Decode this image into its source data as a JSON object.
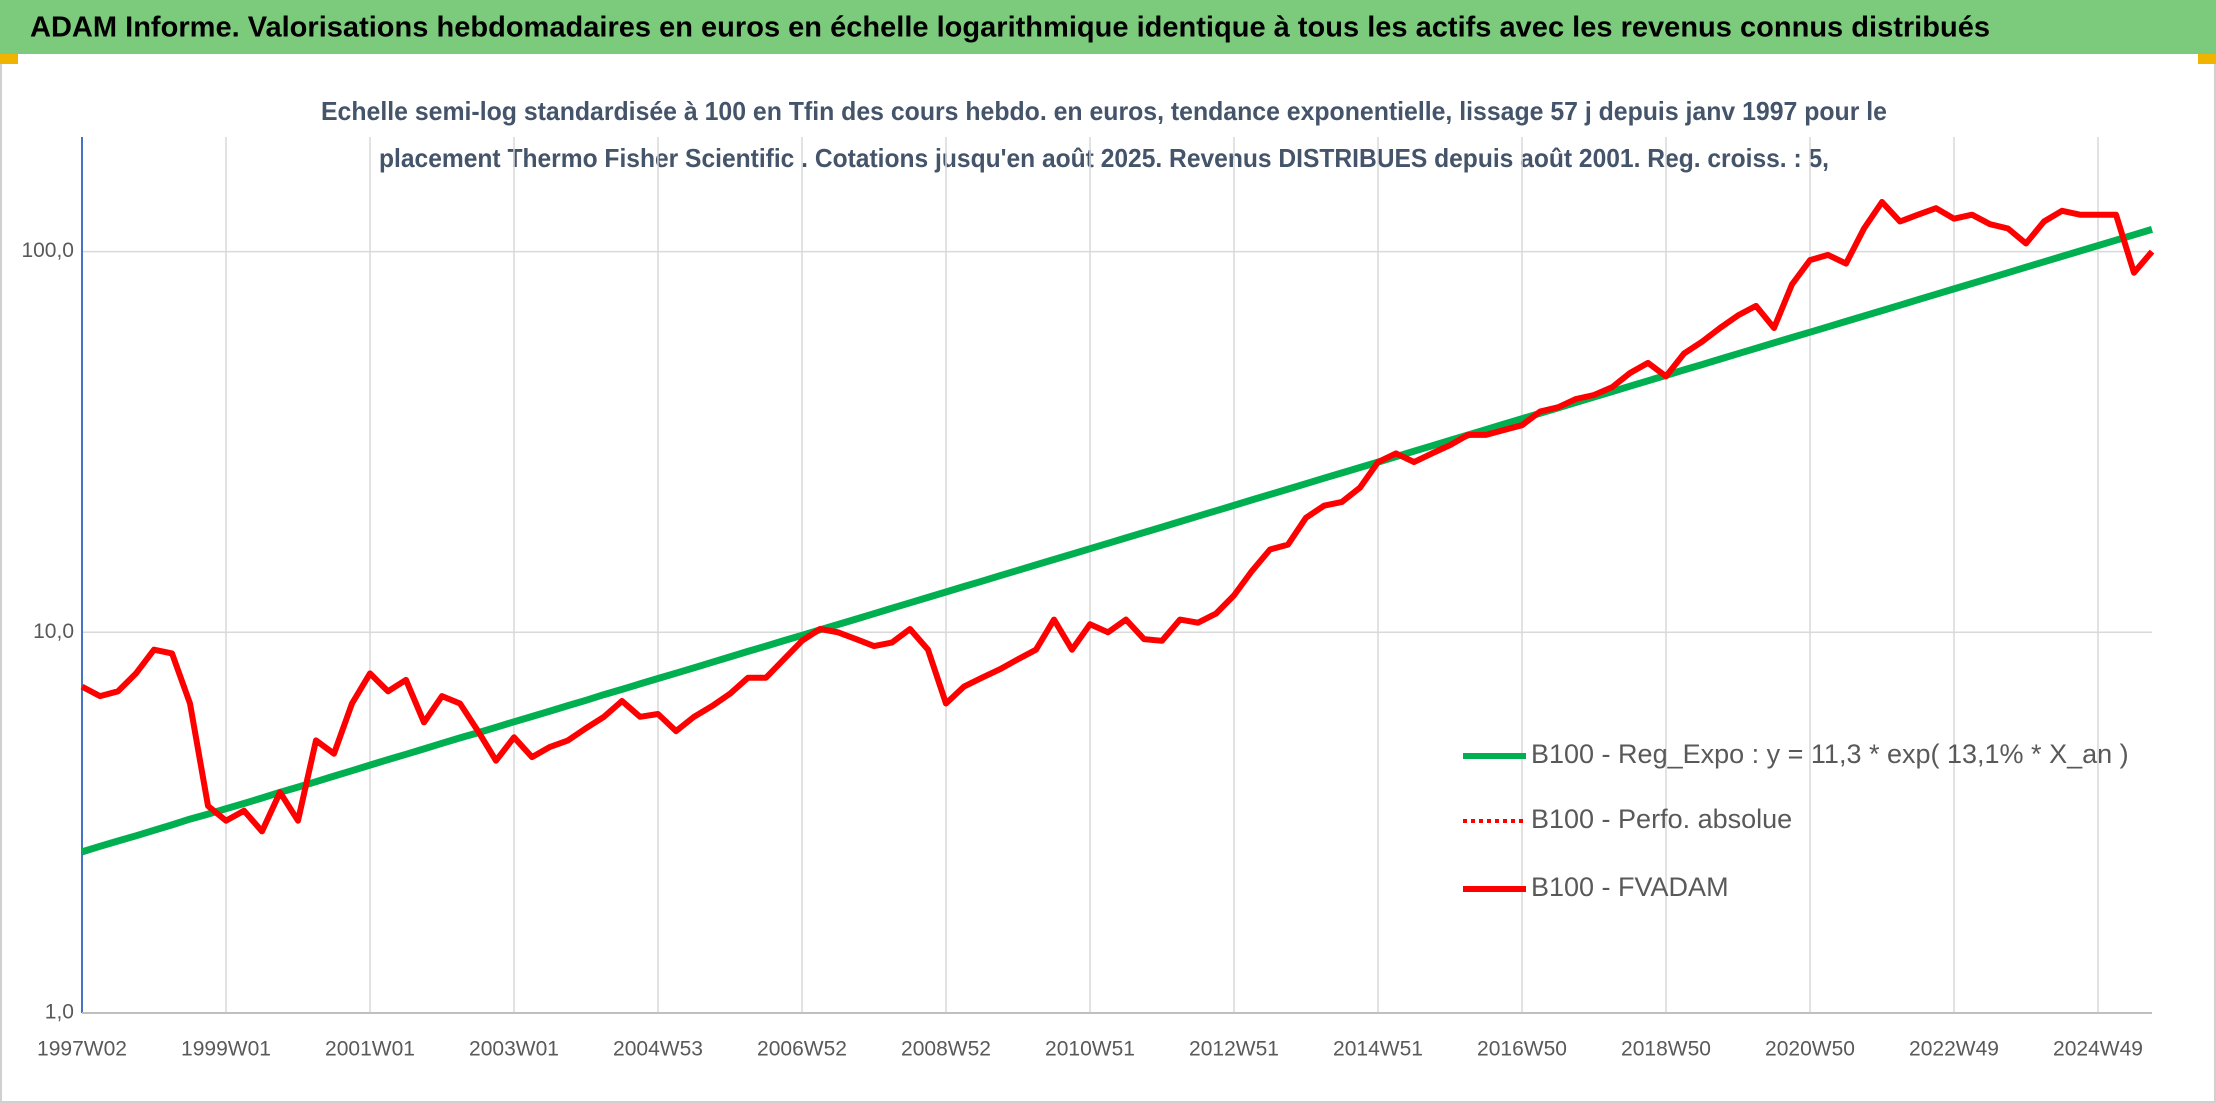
{
  "chart_data": {
    "type": "line",
    "title": "ADAM Informe. Valorisations hebdomadaires en euros en échelle logarithmique identique à tous les actifs avec les revenus connus distribués",
    "subtitle": [
      "Echelle semi-log standardisée à 100 en Tfin des cours hebdo. en euros, tendance exponentielle, lissage 57 j depuis janv 1997 pour le",
      "placement Thermo Fisher Scientific . Cotations jusqu'en août 2025. Revenus DISTRIBUES depuis août 2001. Reg. croiss. : 5,"
    ],
    "log_scale": true,
    "grid": true,
    "legend": "right",
    "ylim": [
      1,
      200
    ],
    "yticks": [
      {
        "value": 1,
        "label": "1,0"
      },
      {
        "value": 10,
        "label": "10,0"
      },
      {
        "value": 100,
        "label": "100,0"
      }
    ],
    "categories": [
      "1997W02",
      null,
      null,
      null,
      null,
      null,
      null,
      null,
      "1999W01",
      null,
      null,
      null,
      null,
      null,
      null,
      null,
      "2001W01",
      null,
      null,
      null,
      null,
      null,
      null,
      null,
      "2003W01",
      null,
      null,
      null,
      null,
      null,
      null,
      null,
      "2004W53",
      null,
      null,
      null,
      null,
      null,
      null,
      null,
      "2006W52",
      null,
      null,
      null,
      null,
      null,
      null,
      null,
      "2008W52",
      null,
      null,
      null,
      null,
      null,
      null,
      null,
      "2010W51",
      null,
      null,
      null,
      null,
      null,
      null,
      null,
      "2012W51",
      null,
      null,
      null,
      null,
      null,
      null,
      null,
      "2014W51",
      null,
      null,
      null,
      null,
      null,
      null,
      null,
      "2016W50",
      null,
      null,
      null,
      null,
      null,
      null,
      null,
      "2018W50",
      null,
      null,
      null,
      null,
      null,
      null,
      null,
      "2020W50",
      null,
      null,
      null,
      null,
      null,
      null,
      null,
      "2022W49",
      null,
      null,
      null,
      null,
      null,
      null,
      null,
      "2024W49",
      null,
      null,
      null
    ],
    "series": [
      {
        "name": "B100 - Reg_Expo : y = 11,3 * exp( 13,1% *  X_an )",
        "color": "#00b050",
        "style": "solid",
        "values": [
          2.65,
          2.74,
          2.83,
          2.92,
          3.02,
          3.12,
          3.23,
          3.33,
          3.44,
          3.55,
          3.67,
          3.8,
          3.92,
          4.05,
          4.19,
          4.33,
          4.48,
          4.63,
          4.78,
          4.94,
          5.11,
          5.28,
          5.45,
          5.63,
          5.82,
          6.01,
          6.21,
          6.42,
          6.63,
          6.86,
          7.08,
          7.32,
          7.56,
          7.81,
          8.07,
          8.34,
          8.62,
          8.91,
          9.2,
          9.51,
          9.82,
          10.15,
          10.48,
          10.83,
          11.19,
          11.57,
          11.95,
          12.35,
          12.76,
          13.19,
          13.62,
          14.08,
          14.55,
          15.03,
          15.53,
          16.05,
          16.58,
          17.13,
          17.7,
          18.29,
          18.9,
          19.53,
          20.18,
          20.85,
          21.55,
          22.27,
          23.01,
          23.78,
          24.57,
          25.39,
          26.23,
          27.1,
          28.0,
          28.93,
          29.9,
          30.89,
          31.92,
          32.98,
          34.08,
          35.22,
          36.4,
          37.61,
          38.86,
          40.16,
          41.5,
          42.88,
          44.31,
          45.78,
          47.3,
          48.88,
          50.5,
          52.19,
          53.92,
          55.72,
          57.58,
          59.49,
          61.4,
          63.44,
          65.56,
          67.74,
          70.0,
          72.33,
          74.74,
          77.22,
          79.8,
          82.46,
          85.2,
          88.04,
          90.97,
          94.0,
          97.13,
          100.36,
          103.7,
          107.15,
          110.72,
          114.4
        ]
      },
      {
        "name": "B100 - Perfo. absolue",
        "color": "#ff0000",
        "style": "dotted"
      },
      {
        "name": "B100 - FVADAM",
        "color": "#ff0000",
        "style": "solid",
        "values": [
          7.2,
          6.8,
          7.0,
          7.8,
          9.0,
          8.8,
          6.5,
          3.5,
          3.2,
          3.4,
          3.0,
          3.8,
          3.2,
          5.2,
          4.8,
          6.5,
          7.8,
          7.0,
          7.5,
          5.8,
          6.8,
          6.5,
          5.5,
          4.6,
          5.3,
          4.7,
          5.0,
          5.2,
          5.6,
          6.0,
          6.6,
          6.0,
          6.1,
          5.5,
          6.0,
          6.4,
          6.9,
          7.6,
          7.6,
          8.5,
          9.5,
          10.2,
          10.0,
          9.6,
          9.2,
          9.4,
          10.2,
          9.0,
          6.5,
          7.2,
          7.6,
          8.0,
          8.5,
          9.0,
          10.8,
          9.0,
          10.5,
          10.0,
          10.8,
          9.6,
          9.5,
          10.8,
          10.6,
          11.2,
          12.5,
          14.5,
          16.5,
          17.0,
          20.0,
          21.5,
          22.0,
          24.0,
          28.0,
          29.5,
          28.0,
          29.5,
          31.0,
          33.0,
          33.0,
          34.0,
          35.0,
          38.0,
          39.0,
          41.0,
          42.0,
          44.0,
          48.0,
          51.0,
          47.0,
          54.0,
          58.0,
          63.0,
          68.0,
          72.0,
          63.0,
          82.0,
          95.0,
          98.0,
          93.0,
          115.0,
          135.0,
          120.0,
          125.0,
          130.0,
          122.0,
          125.0,
          118.0,
          115.0,
          105.0,
          120.0,
          128.0,
          125.0,
          125.0,
          125.0,
          88.0,
          100.0
        ]
      }
    ]
  }
}
